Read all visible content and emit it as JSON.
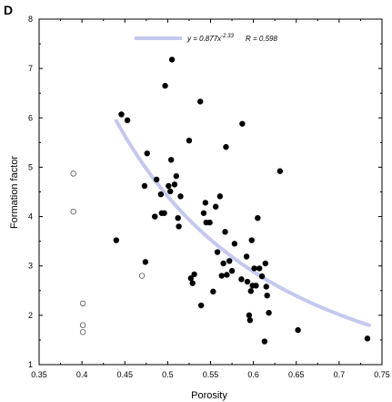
{
  "panel_label": "D",
  "legend": {
    "equation": "y = 0.877x",
    "exponent": "-2.33",
    "r_text": "R = 0.598"
  },
  "colors": {
    "fit_line": "#c4c8ee",
    "filled_point": "#000000",
    "open_point_stroke": "#555555",
    "axis": "#000000"
  },
  "chart_data": {
    "type": "scatter",
    "title": "",
    "xlabel": "Porosity",
    "ylabel": "Formation factor",
    "xlim": [
      0.35,
      0.75
    ],
    "ylim": [
      1,
      8
    ],
    "xticks": [
      "0.35",
      "0.4",
      "0.45",
      "0.5",
      "0.55",
      "0.6",
      "0.65",
      "0.7",
      "0.75"
    ],
    "yticks": [
      "1",
      "2",
      "3",
      "4",
      "5",
      "6",
      "7",
      "8"
    ],
    "grid": false,
    "legend_position": "top-center",
    "fit": {
      "a": 0.877,
      "b": -2.33,
      "x_range": [
        0.44,
        0.735
      ]
    },
    "series": [
      {
        "marker": "filled",
        "points": [
          [
            0.44,
            3.52
          ],
          [
            0.446,
            6.07
          ],
          [
            0.453,
            5.95
          ],
          [
            0.474,
            3.08
          ],
          [
            0.473,
            4.62
          ],
          [
            0.476,
            5.28
          ],
          [
            0.485,
            4.0
          ],
          [
            0.487,
            4.75
          ],
          [
            0.492,
            4.45
          ],
          [
            0.493,
            4.07
          ],
          [
            0.496,
            4.07
          ],
          [
            0.497,
            6.65
          ],
          [
            0.501,
            4.62
          ],
          [
            0.503,
            4.51
          ],
          [
            0.504,
            5.15
          ],
          [
            0.505,
            7.18
          ],
          [
            0.508,
            4.65
          ],
          [
            0.51,
            4.82
          ],
          [
            0.512,
            3.97
          ],
          [
            0.513,
            3.8
          ],
          [
            0.515,
            4.41
          ],
          [
            0.525,
            5.54
          ],
          [
            0.527,
            2.75
          ],
          [
            0.529,
            2.65
          ],
          [
            0.531,
            2.83
          ],
          [
            0.538,
            6.33
          ],
          [
            0.539,
            2.2
          ],
          [
            0.542,
            4.07
          ],
          [
            0.544,
            4.28
          ],
          [
            0.545,
            3.88
          ],
          [
            0.549,
            3.88
          ],
          [
            0.553,
            2.48
          ],
          [
            0.556,
            4.2
          ],
          [
            0.558,
            3.28
          ],
          [
            0.561,
            4.41
          ],
          [
            0.563,
            2.8
          ],
          [
            0.565,
            3.05
          ],
          [
            0.567,
            3.69
          ],
          [
            0.568,
            5.41
          ],
          [
            0.569,
            2.82
          ],
          [
            0.572,
            3.1
          ],
          [
            0.575,
            2.9
          ],
          [
            0.578,
            3.45
          ],
          [
            0.586,
            2.73
          ],
          [
            0.587,
            5.88
          ],
          [
            0.592,
            3.19
          ],
          [
            0.593,
            2.68
          ],
          [
            0.595,
            2.0
          ],
          [
            0.596,
            1.9
          ],
          [
            0.597,
            2.49
          ],
          [
            0.598,
            3.52
          ],
          [
            0.599,
            2.6
          ],
          [
            0.601,
            2.95
          ],
          [
            0.603,
            2.6
          ],
          [
            0.605,
            3.97
          ],
          [
            0.607,
            2.95
          ],
          [
            0.61,
            2.79
          ],
          [
            0.613,
            1.47
          ],
          [
            0.614,
            3.05
          ],
          [
            0.615,
            2.58
          ],
          [
            0.616,
            2.4
          ],
          [
            0.618,
            2.05
          ],
          [
            0.631,
            4.92
          ],
          [
            0.652,
            1.7
          ],
          [
            0.733,
            1.53
          ]
        ]
      },
      {
        "marker": "open",
        "points": [
          [
            0.39,
            4.87
          ],
          [
            0.39,
            4.1
          ],
          [
            0.401,
            2.24
          ],
          [
            0.401,
            1.8
          ],
          [
            0.401,
            1.66
          ],
          [
            0.47,
            2.8
          ]
        ]
      }
    ]
  }
}
